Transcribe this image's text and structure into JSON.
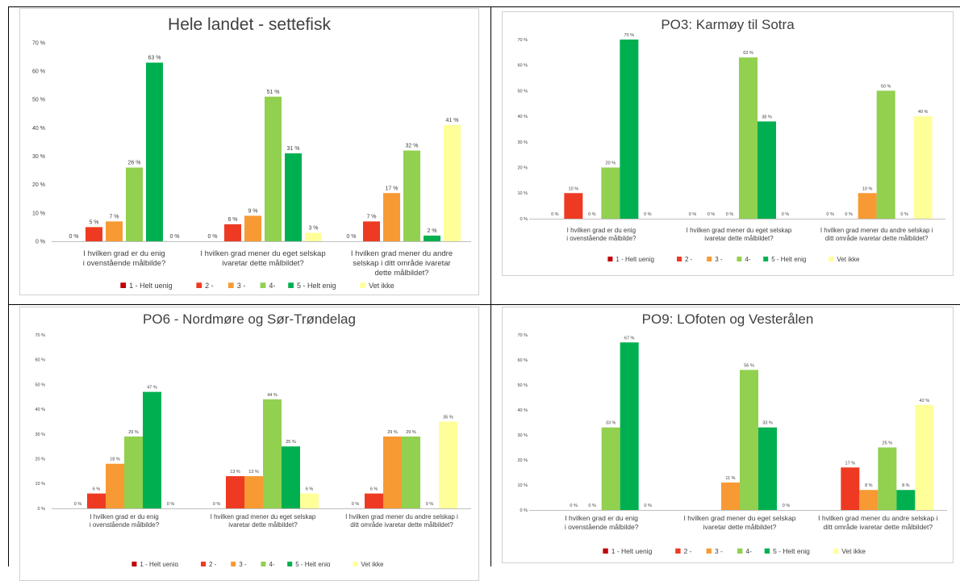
{
  "colors": {
    "1 - Helt uenig": "#c00000",
    "2 -": "#ee3a23",
    "3 -": "#f79a33",
    "4-": "#92d050",
    "5 - Helt enig": "#00b050",
    "Vet ikke": "#ffff99"
  },
  "chart_data": [
    {
      "type": "bar",
      "title": "Hele landet - settefisk",
      "categories": [
        [
          "I hvilken grad er du enig",
          "i ovenstående målbilde?"
        ],
        [
          "I hvilken grad mener du eget selskap",
          "ivaretar dette målbildet?"
        ],
        [
          "I hvilken grad mener du andre",
          "selskap i ditt område ivaretar",
          "dette målbildet?"
        ]
      ],
      "ylim": [
        0,
        70
      ],
      "yticks": [
        "0 %",
        "10 %",
        "20 %",
        "30 %",
        "40 %",
        "50 %",
        "60 %",
        "70 %"
      ],
      "legend_position": "bottom",
      "series": [
        {
          "name": "1 - Helt uenig",
          "values": [
            0,
            0,
            0
          ],
          "labels": [
            "0 %",
            "0 %",
            "0 %"
          ]
        },
        {
          "name": "2 -",
          "values": [
            5,
            6,
            7
          ],
          "labels": [
            "5 %",
            "6 %",
            "7 %"
          ]
        },
        {
          "name": "3 -",
          "values": [
            7,
            9,
            17
          ],
          "labels": [
            "7 %",
            "9 %",
            "17 %"
          ]
        },
        {
          "name": "4-",
          "values": [
            26,
            51,
            32
          ],
          "labels": [
            "26 %",
            "51 %",
            "32 %"
          ]
        },
        {
          "name": "5 - Helt enig",
          "values": [
            63,
            31,
            2
          ],
          "labels": [
            "63 %",
            "31 %",
            "2 %"
          ]
        },
        {
          "name": "Vet ikke",
          "values": [
            0,
            3,
            41
          ],
          "labels": [
            "0 %",
            "3 %",
            "41 %"
          ]
        }
      ]
    },
    {
      "type": "bar",
      "title": "PO3: Karmøy til Sotra",
      "categories": [
        [
          "I hvilken grad er du enig",
          "i ovenstående målbilde?"
        ],
        [
          "I hvilken grad mener du eget selskap",
          "ivaretar dette målbildet?"
        ],
        [
          "I hvilken grad mener du andre selskap i",
          "ditt område ivaretar dette målbildet?"
        ]
      ],
      "ylim": [
        0,
        70
      ],
      "yticks": [
        "0 %",
        "10 %",
        "20 %",
        "30 %",
        "40 %",
        "50 %",
        "60 %",
        "70 %"
      ],
      "legend_position": "bottom",
      "series": [
        {
          "name": "1 - Helt uenig",
          "values": [
            0,
            0,
            0
          ],
          "labels": [
            "0 %",
            "0 %",
            "0 %"
          ]
        },
        {
          "name": "2 -",
          "values": [
            10,
            0,
            0
          ],
          "labels": [
            "10 %",
            "0 %",
            "0 %"
          ]
        },
        {
          "name": "3 -",
          "values": [
            0,
            0,
            10
          ],
          "labels": [
            "0 %",
            "0 %",
            "10 %"
          ]
        },
        {
          "name": "4-",
          "values": [
            20,
            63,
            50
          ],
          "labels": [
            "20 %",
            "63 %",
            "50 %"
          ]
        },
        {
          "name": "5 - Helt enig",
          "values": [
            70,
            38,
            0
          ],
          "labels": [
            "70 %",
            "38 %",
            "0 %"
          ]
        },
        {
          "name": "Vet ikke",
          "values": [
            0,
            0,
            40
          ],
          "labels": [
            "0 %",
            "0 %",
            "40 %"
          ]
        }
      ]
    },
    {
      "type": "bar",
      "title": "PO6 - Nordmøre og Sør-Trøndelag",
      "categories": [
        [
          "I hvilken grad er du enig",
          "i ovenstående målbilde?"
        ],
        [
          "I hvilken grad mener du eget selskap",
          "ivaretar dette målbildet?"
        ],
        [
          "I hvilken grad mener du andre selskap i",
          "ditt område ivaretar dette målbildet?"
        ]
      ],
      "ylim": [
        0,
        70
      ],
      "yticks": [
        "0 %",
        "10 %",
        "20 %",
        "30 %",
        "40 %",
        "50 %",
        "60 %",
        "70 %"
      ],
      "legend_position": "bottom",
      "series": [
        {
          "name": "1 - Helt uenig",
          "values": [
            0,
            0,
            0
          ],
          "labels": [
            "0 %",
            "0 %",
            "0 %"
          ]
        },
        {
          "name": "2 -",
          "values": [
            6,
            13,
            6
          ],
          "labels": [
            "6 %",
            "13 %",
            "6 %"
          ]
        },
        {
          "name": "3 -",
          "values": [
            18,
            13,
            29
          ],
          "labels": [
            "18 %",
            "13 %",
            "29 %"
          ]
        },
        {
          "name": "4-",
          "values": [
            29,
            44,
            29
          ],
          "labels": [
            "29 %",
            "44 %",
            "29 %"
          ]
        },
        {
          "name": "5 - Helt enig",
          "values": [
            47,
            25,
            0
          ],
          "labels": [
            "47 %",
            "25 %",
            "0 %"
          ]
        },
        {
          "name": "Vet ikke",
          "values": [
            0,
            6,
            35
          ],
          "labels": [
            "0 %",
            "6 %",
            "35 %"
          ]
        }
      ]
    },
    {
      "type": "bar",
      "title": "PO9: LOfoten og Vesterålen",
      "categories": [
        [
          "I hvilken grad er du enig",
          "i ovenstående målbilde?"
        ],
        [
          "I hvilken grad mener du eget selskap",
          "ivaretar dette målbildet?"
        ],
        [
          "I hvilken grad mener du andre selskap i",
          "ditt område ivaretar dette målbildet?"
        ]
      ],
      "ylim": [
        0,
        70
      ],
      "yticks": [
        "0 %",
        "10 %",
        "20 %",
        "30 %",
        "40 %",
        "50 %",
        "60 %",
        "70 %"
      ],
      "legend_position": "bottom",
      "series": [
        {
          "name": "1 - Helt uenig",
          "values": [
            0,
            0,
            0
          ],
          "labels": [
            "",
            "",
            ""
          ]
        },
        {
          "name": "2 -",
          "values": [
            0,
            0,
            17
          ],
          "labels": [
            "0 %",
            "",
            "17 %"
          ]
        },
        {
          "name": "3 -",
          "values": [
            0,
            11,
            8
          ],
          "labels": [
            "0 %",
            "11 %",
            "8 %"
          ]
        },
        {
          "name": "4-",
          "values": [
            33,
            56,
            25
          ],
          "labels": [
            "33 %",
            "56 %",
            "25 %"
          ]
        },
        {
          "name": "5 - Helt enig",
          "values": [
            67,
            33,
            8
          ],
          "labels": [
            "67 %",
            "33 %",
            "8 %"
          ]
        },
        {
          "name": "Vet ikke",
          "values": [
            0,
            0,
            42
          ],
          "labels": [
            "0 %",
            "0 %",
            "42 %"
          ]
        }
      ]
    }
  ]
}
